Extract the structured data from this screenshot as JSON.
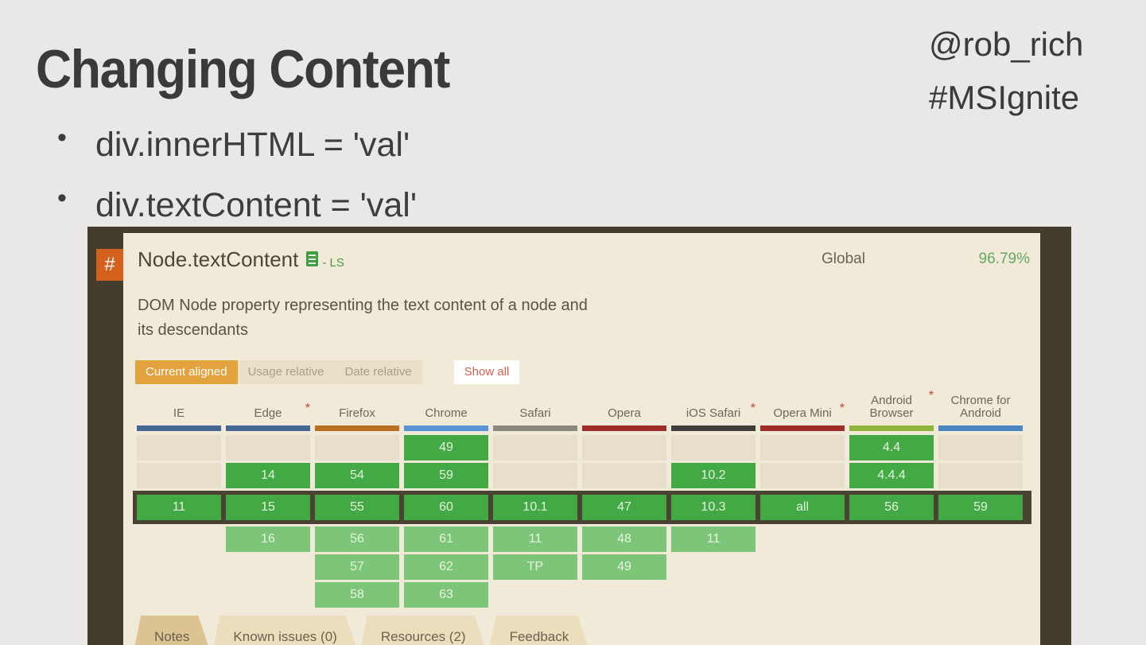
{
  "slide": {
    "title": "Changing Content",
    "social_line1": "@rob_rich",
    "social_line2": "#MSIgnite",
    "bullet_glyph": "•",
    "bullets": [
      "div.innerHTML = 'val'",
      "div.textContent = 'val'"
    ]
  },
  "embed": {
    "hash_badge": "#",
    "feature_title": "Node.textContent",
    "spec_status": "- LS",
    "spec_icon": "spec-document-icon",
    "usage_label": "Global",
    "usage_value": "96.79%",
    "description_line1": "DOM Node property representing the text content of a node and",
    "description_line2": "its descendants",
    "filters": [
      {
        "label": "Current aligned",
        "state": "active"
      },
      {
        "label": "Usage relative",
        "state": "inactive"
      },
      {
        "label": "Date relative",
        "state": "inactive"
      },
      {
        "label": "Show all",
        "state": "showall"
      }
    ],
    "colors": {
      "accent_orange": "#d4611d",
      "filter_active": "#e2a23e",
      "support_green": "#43a945",
      "future_green": "#7dc578",
      "unknown_beige": "#e8dfca",
      "current_row_border": "#4a4334",
      "panel_bg": "#f2ead8",
      "frame_bg": "#443d2d"
    },
    "table": {
      "current_row_index": 2,
      "browsers": [
        {
          "name": "IE",
          "star": false,
          "bar": "#44688f",
          "rows": [
            {
              "t": "na"
            },
            {
              "t": "na"
            },
            {
              "v": "11",
              "t": "cur"
            },
            {
              "t": "none"
            },
            {
              "t": "none"
            },
            {
              "t": "none"
            }
          ]
        },
        {
          "name": "Edge",
          "star": true,
          "bar": "#44688f",
          "rows": [
            {
              "t": "na"
            },
            {
              "v": "14",
              "t": "past"
            },
            {
              "v": "15",
              "t": "cur"
            },
            {
              "v": "16",
              "t": "fut"
            },
            {
              "t": "none"
            },
            {
              "t": "none"
            }
          ]
        },
        {
          "name": "Firefox",
          "star": false,
          "bar": "#ba7021",
          "rows": [
            {
              "t": "na"
            },
            {
              "v": "54",
              "t": "past"
            },
            {
              "v": "55",
              "t": "cur"
            },
            {
              "v": "56",
              "t": "fut"
            },
            {
              "v": "57",
              "t": "fut"
            },
            {
              "v": "58",
              "t": "fut"
            }
          ]
        },
        {
          "name": "Chrome",
          "star": false,
          "bar": "#5b94d6",
          "rows": [
            {
              "v": "49",
              "t": "past"
            },
            {
              "v": "59",
              "t": "past"
            },
            {
              "v": "60",
              "t": "cur"
            },
            {
              "v": "61",
              "t": "fut"
            },
            {
              "v": "62",
              "t": "fut"
            },
            {
              "v": "63",
              "t": "fut"
            }
          ]
        },
        {
          "name": "Safari",
          "star": false,
          "bar": "#8b897f",
          "rows": [
            {
              "t": "na"
            },
            {
              "t": "na"
            },
            {
              "v": "10.1",
              "t": "cur"
            },
            {
              "v": "11",
              "t": "fut"
            },
            {
              "v": "TP",
              "t": "fut"
            },
            {
              "t": "none"
            }
          ]
        },
        {
          "name": "Opera",
          "star": false,
          "bar": "#9f2d28",
          "rows": [
            {
              "t": "na"
            },
            {
              "t": "na"
            },
            {
              "v": "47",
              "t": "cur"
            },
            {
              "v": "48",
              "t": "fut"
            },
            {
              "v": "49",
              "t": "fut"
            },
            {
              "t": "none"
            }
          ]
        },
        {
          "name": "iOS Safari",
          "star": true,
          "bar": "#3f3e38",
          "rows": [
            {
              "t": "na"
            },
            {
              "v": "10.2",
              "t": "past"
            },
            {
              "v": "10.3",
              "t": "cur"
            },
            {
              "v": "11",
              "t": "fut"
            },
            {
              "t": "none"
            },
            {
              "t": "none"
            }
          ]
        },
        {
          "name": "Opera Mini",
          "star": true,
          "bar": "#9f2d28",
          "rows": [
            {
              "t": "na"
            },
            {
              "t": "na"
            },
            {
              "v": "all",
              "t": "cur"
            },
            {
              "t": "none"
            },
            {
              "t": "none"
            },
            {
              "t": "none"
            }
          ]
        },
        {
          "name": "Android Browser",
          "star": true,
          "bar": "#8fb23c",
          "rows": [
            {
              "v": "4.4",
              "t": "past"
            },
            {
              "v": "4.4.4",
              "t": "past"
            },
            {
              "v": "56",
              "t": "cur"
            },
            {
              "t": "none"
            },
            {
              "t": "none"
            },
            {
              "t": "none"
            }
          ]
        },
        {
          "name": "Chrome for Android",
          "star": false,
          "bar": "#4c86c2",
          "rows": [
            {
              "t": "na"
            },
            {
              "t": "na"
            },
            {
              "v": "59",
              "t": "cur"
            },
            {
              "t": "none"
            },
            {
              "t": "none"
            },
            {
              "t": "none"
            }
          ]
        }
      ]
    },
    "tabs": [
      {
        "label": "Notes",
        "state": "active"
      },
      {
        "label": "Known issues (0)",
        "state": "inactive"
      },
      {
        "label": "Resources (2)",
        "state": "inactive"
      },
      {
        "label": "Feedback",
        "state": "inactive"
      }
    ]
  }
}
